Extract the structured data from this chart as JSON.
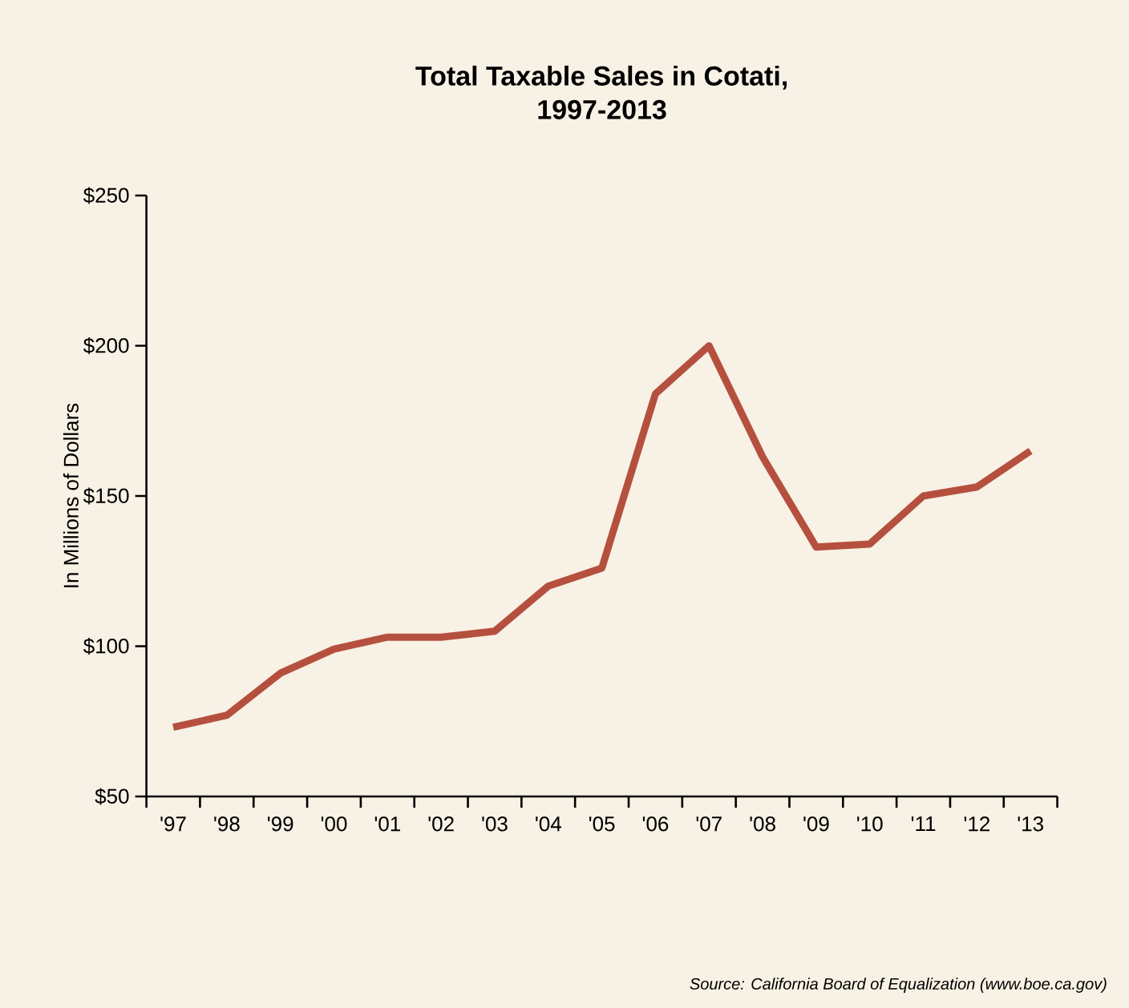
{
  "chart_data": {
    "type": "line",
    "title": "Total Taxable Sales in Cotati,\n1997-2013",
    "ylabel": "In Millions of Dollars",
    "categories": [
      "'97",
      "'98",
      "'99",
      "'00",
      "'01",
      "'02",
      "'03",
      "'04",
      "'05",
      "'06",
      "'07",
      "'08",
      "'09",
      "'10",
      "'11",
      "'12",
      "'13"
    ],
    "series": [
      {
        "color": "#b5503e",
        "values": [
          73,
          77,
          91,
          99,
          103,
          103,
          105,
          120,
          126,
          184,
          200,
          163,
          133,
          134,
          150,
          153,
          165
        ]
      }
    ],
    "ylim": [
      50,
      250
    ],
    "yticks": [
      {
        "value": 50,
        "label": "$50"
      },
      {
        "value": 100,
        "label": "$100"
      },
      {
        "value": 150,
        "label": "$150"
      },
      {
        "value": 200,
        "label": "$200"
      },
      {
        "value": 250,
        "label": "$250"
      }
    ],
    "marker": "none",
    "line_style": "solid",
    "annotations": [
      "Source: California Board of Equalization (www.boe.ca.gov)"
    ]
  }
}
